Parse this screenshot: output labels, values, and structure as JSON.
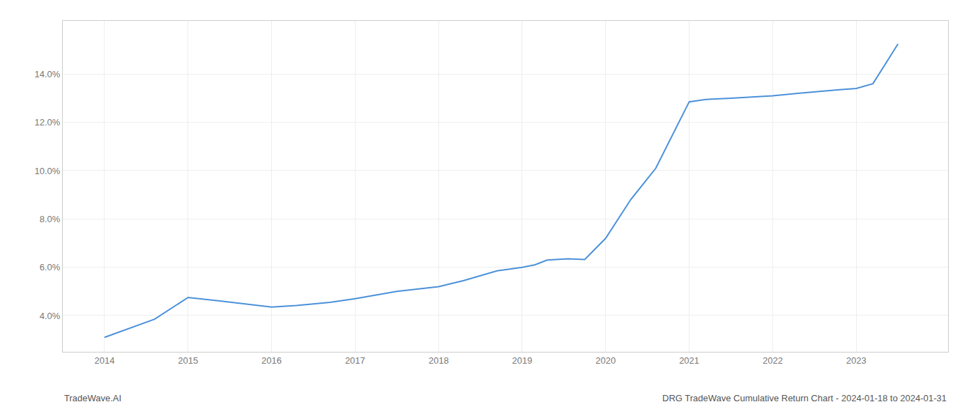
{
  "chart_data": {
    "type": "line",
    "x": [
      2014.0,
      2014.6,
      2015.0,
      2015.4,
      2016.0,
      2016.3,
      2016.7,
      2017.0,
      2017.5,
      2018.0,
      2018.3,
      2018.7,
      2019.0,
      2019.15,
      2019.3,
      2019.55,
      2019.75,
      2020.0,
      2020.3,
      2020.6,
      2021.0,
      2021.2,
      2021.5,
      2021.8,
      2022.0,
      2022.3,
      2022.6,
      2022.8,
      2023.0,
      2023.2,
      2023.5
    ],
    "values": [
      3.1,
      3.85,
      4.75,
      4.6,
      4.35,
      4.42,
      4.55,
      4.7,
      5.0,
      5.2,
      5.45,
      5.85,
      6.0,
      6.1,
      6.3,
      6.35,
      6.32,
      7.2,
      8.8,
      10.1,
      12.85,
      12.95,
      13.0,
      13.05,
      13.1,
      13.2,
      13.3,
      13.35,
      13.4,
      13.6,
      15.25
    ],
    "color": "#4a90d9",
    "xlim": [
      2013.5,
      2024.1
    ],
    "xticks": [
      2014,
      2015,
      2016,
      2017,
      2018,
      2019,
      2020,
      2021,
      2022,
      2023
    ],
    "ylim": [
      2.5,
      16.2
    ],
    "yticks": [
      {
        "value": 4.0,
        "label": "4.0%"
      },
      {
        "value": 6.0,
        "label": "6.0%"
      },
      {
        "value": 8.0,
        "label": "8.0%"
      },
      {
        "value": 10.0,
        "label": "10.0%"
      },
      {
        "value": 12.0,
        "label": "12.0%"
      },
      {
        "value": 14.0,
        "label": "14.0%"
      }
    ],
    "grid": true,
    "annotations": [
      "TradeWave.AI",
      "DRG TradeWave Cumulative Return Chart - 2024-01-18 to 2024-01-31"
    ]
  }
}
